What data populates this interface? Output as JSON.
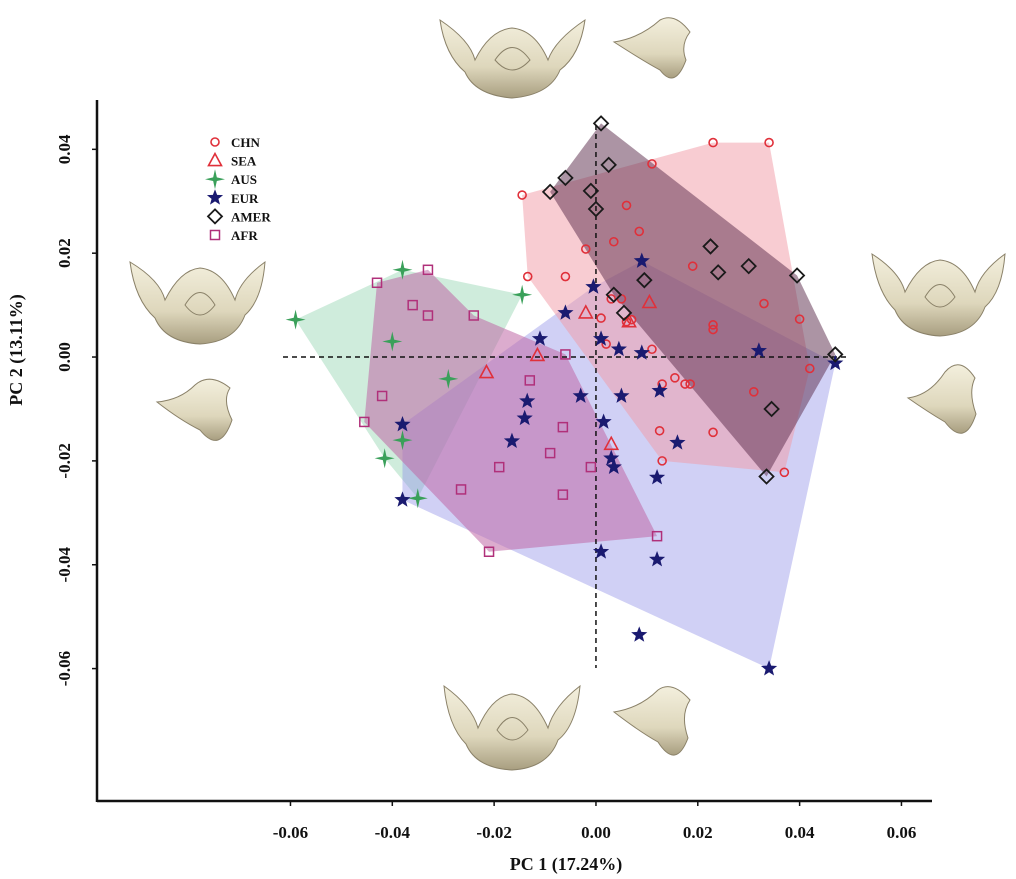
{
  "chart_data": {
    "type": "scatter",
    "xlabel": "PC 1 (17.24%)",
    "ylabel": "PC 2 (13.11%)",
    "xlim": [
      -0.098,
      0.066
    ],
    "ylim": [
      -0.0855,
      0.0495
    ],
    "xticks": [
      -0.06,
      -0.04,
      -0.02,
      0.0,
      0.02,
      0.04,
      0.06
    ],
    "xtick_labels": [
      "-0.06",
      "-0.04",
      "-0.02",
      "0.00",
      "0.02",
      "0.04",
      "0.06"
    ],
    "yticks": [
      0.04,
      0.02,
      0.0,
      -0.02,
      -0.04,
      -0.06
    ],
    "ytick_labels": [
      "0.04",
      "0.02",
      "0.00",
      "-0.02",
      "-0.04",
      "-0.06"
    ],
    "grid": false,
    "legend": "top-left",
    "reference_lines": {
      "x": 0,
      "y": 0,
      "style": "dashed"
    },
    "series": [
      {
        "name": "CHN",
        "marker": "circle",
        "color": "#e0303a",
        "fill": "#f29aa6",
        "points": [
          [
            -0.0145,
            0.0312
          ],
          [
            -0.0134,
            0.0155
          ],
          [
            -0.006,
            0.0155
          ],
          [
            -0.002,
            0.0208
          ],
          [
            0.0035,
            0.0222
          ],
          [
            0.006,
            0.0292
          ],
          [
            0.0085,
            0.0242
          ],
          [
            0.011,
            0.0372
          ],
          [
            0.023,
            0.0413
          ],
          [
            0.034,
            0.0413
          ],
          [
            0.019,
            0.0175
          ],
          [
            0.023,
            0.0062
          ],
          [
            0.023,
            0.0053
          ],
          [
            0.033,
            0.0103
          ],
          [
            0.04,
            0.0073
          ],
          [
            0.042,
            -0.0022
          ],
          [
            0.031,
            -0.0067
          ],
          [
            0.037,
            -0.0222
          ],
          [
            0.023,
            -0.0145
          ],
          [
            0.0125,
            -0.0142
          ],
          [
            0.013,
            -0.02
          ],
          [
            0.013,
            -0.0052
          ],
          [
            0.0155,
            -0.004
          ],
          [
            0.0175,
            -0.0052
          ],
          [
            0.0185,
            -0.0052
          ],
          [
            0.006,
            0.0068
          ],
          [
            0.007,
            0.0072
          ],
          [
            0.003,
            0.0112
          ],
          [
            0.005,
            0.0112
          ],
          [
            0.001,
            0.0075
          ],
          [
            0.011,
            0.0015
          ],
          [
            0.002,
            0.0025
          ]
        ],
        "hull": [
          [
            -0.0145,
            0.0312
          ],
          [
            0.023,
            0.0413
          ],
          [
            0.034,
            0.0413
          ],
          [
            0.042,
            -0.0022
          ],
          [
            0.037,
            -0.0222
          ],
          [
            0.013,
            -0.02
          ],
          [
            -0.0134,
            0.0155
          ]
        ]
      },
      {
        "name": "SEA",
        "marker": "triangle",
        "color": "#e0303a",
        "fill": "#d06a7a",
        "points": [
          [
            -0.0215,
            -0.003
          ],
          [
            -0.0115,
            0.0003
          ],
          [
            -0.002,
            0.0085
          ],
          [
            0.003,
            -0.0168
          ],
          [
            0.0105,
            0.0105
          ],
          [
            0.0065,
            0.0068
          ]
        ],
        "hull": []
      },
      {
        "name": "AUS",
        "marker": "star4",
        "color": "#3aa05a",
        "fill": "#a8dcc0",
        "points": [
          [
            -0.059,
            0.0072
          ],
          [
            -0.038,
            0.0168
          ],
          [
            -0.0145,
            0.012
          ],
          [
            -0.04,
            0.003
          ],
          [
            -0.029,
            -0.0042
          ],
          [
            -0.038,
            -0.016
          ],
          [
            -0.0415,
            -0.0195
          ],
          [
            -0.035,
            -0.0272
          ]
        ],
        "hull": [
          [
            -0.059,
            0.0072
          ],
          [
            -0.038,
            0.0168
          ],
          [
            -0.0145,
            0.012
          ],
          [
            -0.035,
            -0.0272
          ],
          [
            -0.0415,
            -0.0195
          ]
        ]
      },
      {
        "name": "EUR",
        "marker": "star5",
        "color": "#1a1a70",
        "fill": "#8e8ee6",
        "points": [
          [
            -0.038,
            -0.013
          ],
          [
            -0.038,
            -0.0275
          ],
          [
            -0.0165,
            -0.0162
          ],
          [
            -0.014,
            -0.0118
          ],
          [
            -0.0135,
            -0.0085
          ],
          [
            -0.011,
            0.0035
          ],
          [
            -0.006,
            0.0085
          ],
          [
            -0.003,
            -0.0075
          ],
          [
            -0.0005,
            0.0135
          ],
          [
            0.001,
            0.0035
          ],
          [
            0.0015,
            -0.0125
          ],
          [
            0.003,
            -0.0195
          ],
          [
            0.0035,
            -0.0212
          ],
          [
            0.0045,
            0.0015
          ],
          [
            0.005,
            -0.0075
          ],
          [
            0.009,
            0.0008
          ],
          [
            0.009,
            0.0185
          ],
          [
            0.012,
            -0.0232
          ],
          [
            0.0125,
            -0.0065
          ],
          [
            0.016,
            -0.0165
          ],
          [
            0.001,
            -0.0375
          ],
          [
            0.012,
            -0.039
          ],
          [
            0.0085,
            -0.0535
          ],
          [
            0.034,
            -0.06
          ],
          [
            0.047,
            -0.0012
          ],
          [
            0.032,
            0.0012
          ]
        ],
        "hull": [
          [
            -0.038,
            -0.013
          ],
          [
            -0.0005,
            0.0135
          ],
          [
            0.009,
            0.0185
          ],
          [
            0.047,
            -0.0012
          ],
          [
            0.034,
            -0.06
          ],
          [
            -0.038,
            -0.0275
          ]
        ]
      },
      {
        "name": "AMER",
        "marker": "diamond",
        "color": "#1a1a1a",
        "fill": "#5a2a4a",
        "points": [
          [
            0.001,
            0.045
          ],
          [
            0.0025,
            0.037
          ],
          [
            -0.006,
            0.0345
          ],
          [
            -0.009,
            0.0318
          ],
          [
            -0.001,
            0.032
          ],
          [
            0.0,
            0.0285
          ],
          [
            0.0225,
            0.0213
          ],
          [
            0.024,
            0.0163
          ],
          [
            0.03,
            0.0175
          ],
          [
            0.0395,
            0.0157
          ],
          [
            0.0095,
            0.0148
          ],
          [
            0.0035,
            0.012
          ],
          [
            0.0055,
            0.0085
          ],
          [
            0.047,
            0.0005
          ],
          [
            0.0345,
            -0.01
          ],
          [
            0.0335,
            -0.023
          ]
        ],
        "hull": [
          [
            0.001,
            0.045
          ],
          [
            0.0395,
            0.0157
          ],
          [
            0.047,
            0.0005
          ],
          [
            0.0335,
            -0.023
          ],
          [
            0.0035,
            0.012
          ],
          [
            -0.009,
            0.0318
          ]
        ]
      },
      {
        "name": "AFR",
        "marker": "square",
        "color": "#b0307a",
        "fill": "#c068a6",
        "points": [
          [
            -0.043,
            0.0143
          ],
          [
            -0.033,
            0.0168
          ],
          [
            -0.036,
            0.01
          ],
          [
            -0.033,
            0.008
          ],
          [
            -0.024,
            0.008
          ],
          [
            -0.042,
            -0.0075
          ],
          [
            -0.0455,
            -0.0125
          ],
          [
            -0.013,
            -0.0045
          ],
          [
            -0.006,
            0.0005
          ],
          [
            -0.0065,
            -0.0135
          ],
          [
            -0.009,
            -0.0185
          ],
          [
            -0.019,
            -0.0212
          ],
          [
            -0.0265,
            -0.0255
          ],
          [
            -0.0065,
            -0.0265
          ],
          [
            -0.001,
            -0.0212
          ],
          [
            -0.021,
            -0.0375
          ],
          [
            0.012,
            -0.0345
          ]
        ],
        "hull": [
          [
            -0.043,
            0.0143
          ],
          [
            -0.033,
            0.0168
          ],
          [
            -0.024,
            0.008
          ],
          [
            -0.006,
            0.0005
          ],
          [
            0.012,
            -0.0345
          ],
          [
            -0.021,
            -0.0375
          ],
          [
            -0.0455,
            -0.0125
          ]
        ]
      }
    ]
  }
}
